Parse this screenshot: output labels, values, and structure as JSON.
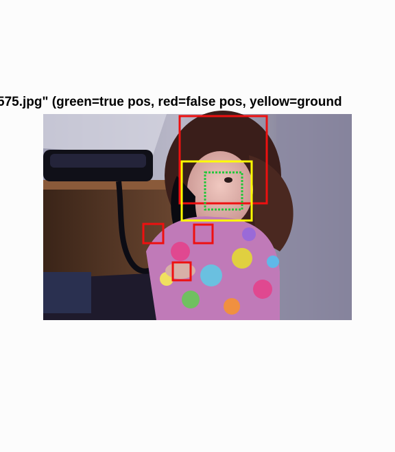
{
  "figure": {
    "title": "575.jpg\" (green=true pos, red=false pos, yellow=ground"
  },
  "colors": {
    "true_positive": "#22c83a",
    "false_positive": "#ee1010",
    "ground_truth": "#ffff00",
    "background": "#fcfcfc"
  },
  "photo": {
    "description_tag": "child-on-telephone-photo"
  }
}
